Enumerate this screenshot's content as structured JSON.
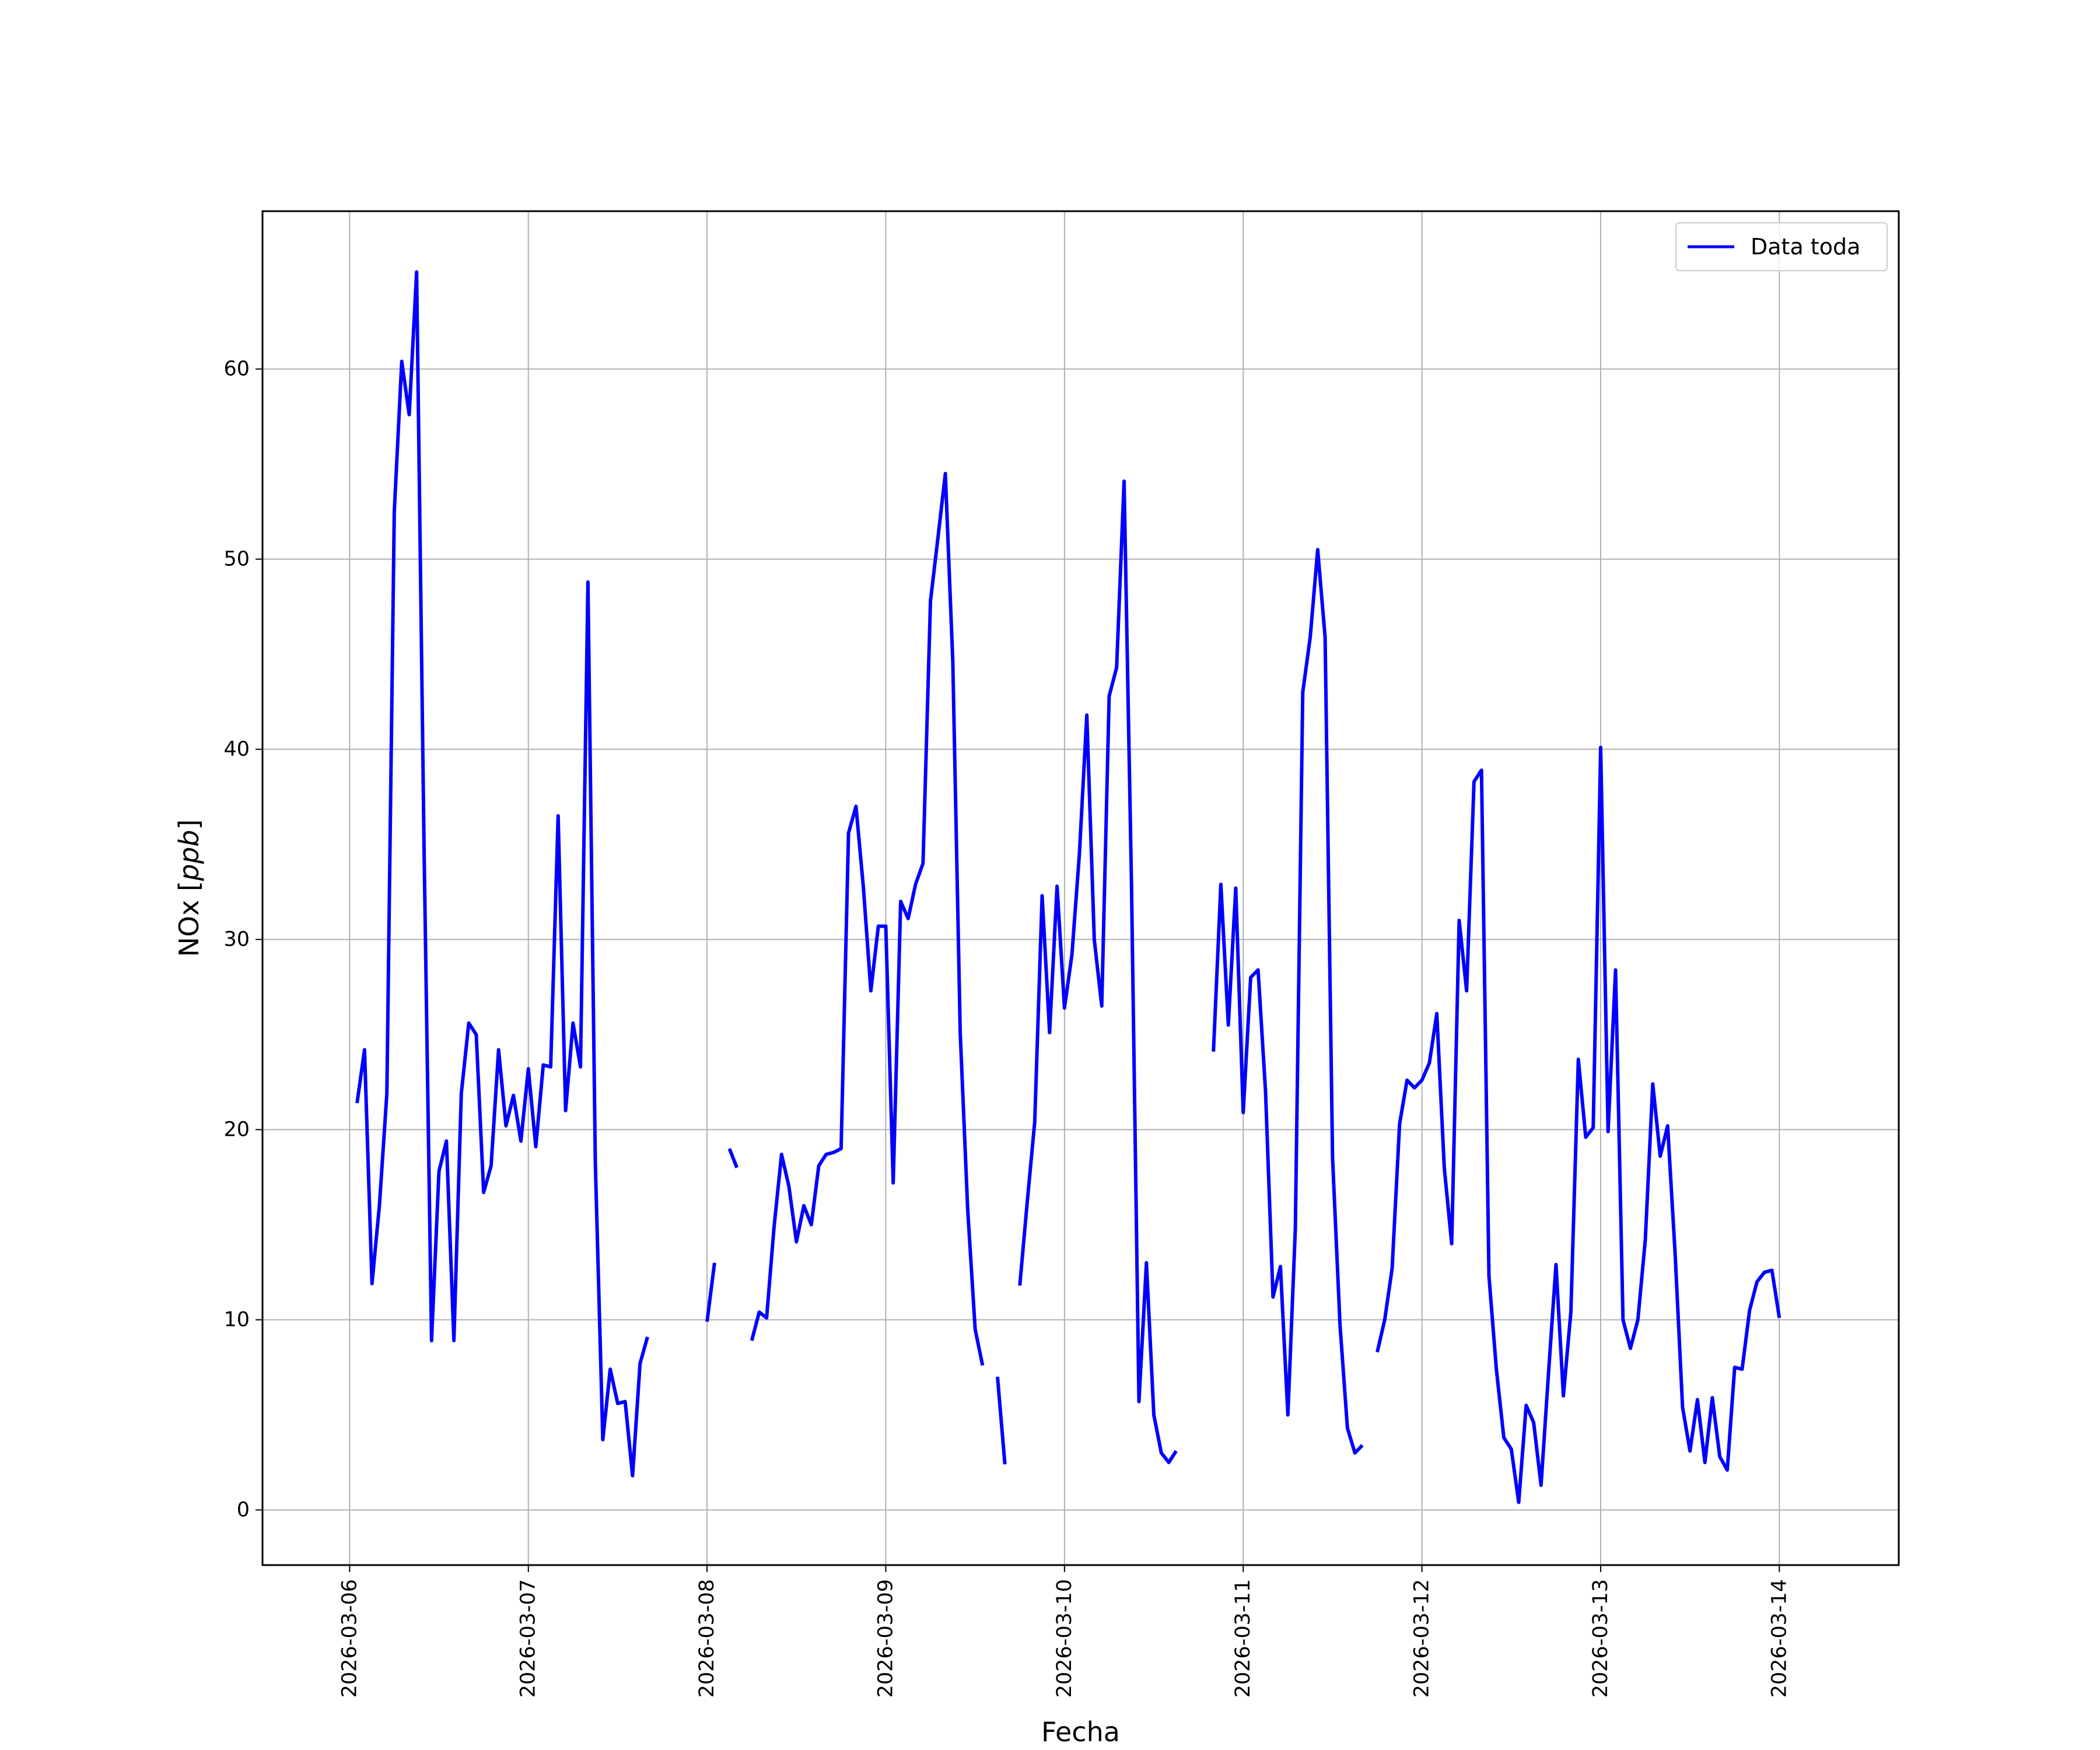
{
  "chart_data": {
    "type": "line",
    "title": "",
    "xlabel": "Fecha",
    "ylabel_prefix": "NOx [",
    "ylabel_unit": "ppb",
    "ylabel_suffix": "]",
    "x_is_date": true,
    "x_ticks": [
      "2026-03-06",
      "2026-03-07",
      "2026-03-08",
      "2026-03-09",
      "2026-03-10",
      "2026-03-11",
      "2026-03-12",
      "2026-03-13",
      "2026-03-14"
    ],
    "y_ticks": [
      0,
      10,
      20,
      30,
      40,
      50,
      60
    ],
    "xlim": [
      "2026-03-05 12:18",
      "2026-03-14 16:02"
    ],
    "ylim": [
      -2.9,
      68.3
    ],
    "grid": true,
    "legend_location": "upper right",
    "colors": {
      "line": "#0000ff",
      "grid": "#b0b0b0",
      "axes": "#000000"
    },
    "series": [
      {
        "name": "Data toda",
        "segments": [
          [
            [
              "2026-03-06 01:00",
              21.4
            ],
            [
              "2026-03-06 02:00",
              24.2
            ],
            [
              "2026-03-06 03:00",
              11.9
            ],
            [
              "2026-03-06 04:00",
              16.0
            ],
            [
              "2026-03-06 05:00",
              21.9
            ],
            [
              "2026-03-06 06:00",
              52.5
            ],
            [
              "2026-03-06 07:00",
              60.4
            ],
            [
              "2026-03-06 08:00",
              57.6
            ],
            [
              "2026-03-06 09:00",
              65.1
            ],
            [
              "2026-03-06 10:00",
              34.7
            ],
            [
              "2026-03-06 11:00",
              8.9
            ],
            [
              "2026-03-06 12:00",
              17.8
            ],
            [
              "2026-03-06 13:00",
              19.4
            ],
            [
              "2026-03-06 14:00",
              8.9
            ],
            [
              "2026-03-06 15:00",
              21.9
            ],
            [
              "2026-03-06 16:00",
              25.6
            ],
            [
              "2026-03-06 17:00",
              25.0
            ],
            [
              "2026-03-06 18:00",
              16.7
            ],
            [
              "2026-03-06 19:00",
              18.1
            ],
            [
              "2026-03-06 20:00",
              24.2
            ],
            [
              "2026-03-06 21:00",
              20.2
            ],
            [
              "2026-03-06 22:00",
              21.8
            ],
            [
              "2026-03-06 23:00",
              19.4
            ],
            [
              "2026-03-07 00:00",
              23.2
            ],
            [
              "2026-03-07 01:00",
              19.1
            ],
            [
              "2026-03-07 02:00",
              23.4
            ],
            [
              "2026-03-07 03:00",
              23.3
            ],
            [
              "2026-03-07 04:00",
              36.5
            ],
            [
              "2026-03-07 05:00",
              21.0
            ],
            [
              "2026-03-07 06:00",
              25.6
            ],
            [
              "2026-03-07 07:00",
              23.3
            ],
            [
              "2026-03-07 08:00",
              48.8
            ],
            [
              "2026-03-07 09:00",
              18.2
            ],
            [
              "2026-03-07 10:00",
              3.7
            ],
            [
              "2026-03-07 11:00",
              7.4
            ],
            [
              "2026-03-07 12:00",
              5.6
            ],
            [
              "2026-03-07 13:00",
              5.7
            ],
            [
              "2026-03-07 14:00",
              1.8
            ],
            [
              "2026-03-07 15:00",
              7.7
            ],
            [
              "2026-03-07 16:00",
              9.1
            ]
          ],
          [
            [
              "2026-03-08 00:00",
              9.9
            ],
            [
              "2026-03-08 01:00",
              13.0
            ]
          ],
          [
            [
              "2026-03-08 03:00",
              19.0
            ],
            [
              "2026-03-08 04:00",
              18.0
            ]
          ],
          [
            [
              "2026-03-08 06:00",
              8.9
            ],
            [
              "2026-03-08 07:00",
              10.4
            ],
            [
              "2026-03-08 08:00",
              10.1
            ],
            [
              "2026-03-08 09:00",
              14.9
            ],
            [
              "2026-03-08 10:00",
              18.7
            ],
            [
              "2026-03-08 11:00",
              17.0
            ],
            [
              "2026-03-08 12:00",
              14.1
            ],
            [
              "2026-03-08 13:00",
              16.0
            ],
            [
              "2026-03-08 14:00",
              15.0
            ],
            [
              "2026-03-08 15:00",
              18.1
            ],
            [
              "2026-03-08 16:00",
              18.7
            ],
            [
              "2026-03-08 17:00",
              18.8
            ],
            [
              "2026-03-08 18:00",
              19.0
            ],
            [
              "2026-03-08 19:00",
              35.6
            ],
            [
              "2026-03-08 20:00",
              37.0
            ],
            [
              "2026-03-08 21:00",
              32.7
            ],
            [
              "2026-03-08 22:00",
              27.3
            ],
            [
              "2026-03-08 23:00",
              30.7
            ],
            [
              "2026-03-09 00:00",
              30.7
            ],
            [
              "2026-03-09 01:00",
              17.2
            ],
            [
              "2026-03-09 02:00",
              32.0
            ],
            [
              "2026-03-09 03:00",
              31.1
            ],
            [
              "2026-03-09 04:00",
              32.9
            ],
            [
              "2026-03-09 05:00",
              34.0
            ],
            [
              "2026-03-09 06:00",
              47.8
            ],
            [
              "2026-03-09 07:00",
              51.1
            ],
            [
              "2026-03-09 08:00",
              54.5
            ],
            [
              "2026-03-09 09:00",
              44.6
            ],
            [
              "2026-03-09 10:00",
              25.1
            ],
            [
              "2026-03-09 11:00",
              15.8
            ],
            [
              "2026-03-09 12:00",
              9.5
            ],
            [
              "2026-03-09 13:00",
              7.6
            ]
          ],
          [
            [
              "2026-03-09 15:00",
              7.0
            ],
            [
              "2026-03-09 16:00",
              2.4
            ]
          ],
          [
            [
              "2026-03-09 18:00",
              11.8
            ],
            [
              "2026-03-09 19:00",
              16.2
            ],
            [
              "2026-03-09 20:00",
              20.4
            ],
            [
              "2026-03-09 21:00",
              32.3
            ],
            [
              "2026-03-09 22:00",
              25.1
            ],
            [
              "2026-03-09 23:00",
              32.8
            ],
            [
              "2026-03-10 00:00",
              26.4
            ],
            [
              "2026-03-10 01:00",
              29.2
            ],
            [
              "2026-03-10 02:00",
              34.5
            ],
            [
              "2026-03-10 03:00",
              41.8
            ],
            [
              "2026-03-10 04:00",
              30.0
            ],
            [
              "2026-03-10 05:00",
              26.5
            ],
            [
              "2026-03-10 06:00",
              42.8
            ],
            [
              "2026-03-10 07:00",
              44.3
            ],
            [
              "2026-03-10 08:00",
              54.1
            ],
            [
              "2026-03-10 09:00",
              32.9
            ],
            [
              "2026-03-10 10:00",
              5.7
            ],
            [
              "2026-03-10 11:00",
              13.0
            ],
            [
              "2026-03-10 12:00",
              5.0
            ],
            [
              "2026-03-10 13:00",
              3.0
            ],
            [
              "2026-03-10 14:00",
              2.5
            ],
            [
              "2026-03-10 15:00",
              3.1
            ]
          ],
          [
            [
              "2026-03-10 20:00",
              24.1
            ],
            [
              "2026-03-10 21:00",
              32.9
            ],
            [
              "2026-03-10 22:00",
              25.5
            ],
            [
              "2026-03-10 23:00",
              32.7
            ],
            [
              "2026-03-11 00:00",
              20.9
            ],
            [
              "2026-03-11 01:00",
              28.0
            ],
            [
              "2026-03-11 02:00",
              28.4
            ],
            [
              "2026-03-11 03:00",
              22.0
            ],
            [
              "2026-03-11 04:00",
              11.2
            ],
            [
              "2026-03-11 05:00",
              12.8
            ],
            [
              "2026-03-11 06:00",
              5.0
            ],
            [
              "2026-03-11 07:00",
              14.8
            ],
            [
              "2026-03-11 08:00",
              43.0
            ],
            [
              "2026-03-11 09:00",
              45.9
            ],
            [
              "2026-03-11 10:00",
              50.5
            ],
            [
              "2026-03-11 11:00",
              45.9
            ],
            [
              "2026-03-11 12:00",
              18.5
            ],
            [
              "2026-03-11 13:00",
              9.7
            ],
            [
              "2026-03-11 14:00",
              4.3
            ],
            [
              "2026-03-11 15:00",
              3.0
            ],
            [
              "2026-03-11 16:00",
              3.4
            ]
          ],
          [
            [
              "2026-03-11 18:00",
              8.3
            ],
            [
              "2026-03-11 19:00",
              10.0
            ],
            [
              "2026-03-11 20:00",
              12.7
            ],
            [
              "2026-03-11 21:00",
              20.3
            ],
            [
              "2026-03-11 22:00",
              22.6
            ],
            [
              "2026-03-11 23:00",
              22.2
            ],
            [
              "2026-03-12 00:00",
              22.6
            ],
            [
              "2026-03-12 01:00",
              23.5
            ],
            [
              "2026-03-12 02:00",
              26.1
            ],
            [
              "2026-03-12 03:00",
              18.0
            ],
            [
              "2026-03-12 04:00",
              14.0
            ],
            [
              "2026-03-12 05:00",
              31.0
            ],
            [
              "2026-03-12 06:00",
              27.3
            ],
            [
              "2026-03-12 07:00",
              38.3
            ],
            [
              "2026-03-12 08:00",
              38.9
            ],
            [
              "2026-03-12 09:00",
              12.3
            ],
            [
              "2026-03-12 10:00",
              7.4
            ],
            [
              "2026-03-12 11:00",
              3.8
            ],
            [
              "2026-03-12 12:00",
              3.2
            ],
            [
              "2026-03-12 13:00",
              0.4
            ],
            [
              "2026-03-12 14:00",
              5.5
            ],
            [
              "2026-03-12 15:00",
              4.6
            ],
            [
              "2026-03-12 16:00",
              1.3
            ],
            [
              "2026-03-12 17:00",
              7.2
            ],
            [
              "2026-03-12 18:00",
              12.9
            ],
            [
              "2026-03-12 19:00",
              6.0
            ],
            [
              "2026-03-12 20:00",
              10.4
            ],
            [
              "2026-03-12 21:00",
              23.7
            ],
            [
              "2026-03-12 22:00",
              19.6
            ],
            [
              "2026-03-12 23:00",
              20.1
            ],
            [
              "2026-03-13 00:00",
              40.1
            ],
            [
              "2026-03-13 01:00",
              19.9
            ],
            [
              "2026-03-13 02:00",
              28.4
            ],
            [
              "2026-03-13 03:00",
              10.0
            ],
            [
              "2026-03-13 04:00",
              8.5
            ],
            [
              "2026-03-13 05:00",
              10.0
            ],
            [
              "2026-03-13 06:00",
              14.2
            ],
            [
              "2026-03-13 07:00",
              22.4
            ],
            [
              "2026-03-13 08:00",
              18.6
            ],
            [
              "2026-03-13 09:00",
              20.2
            ],
            [
              "2026-03-13 10:00",
              13.5
            ],
            [
              "2026-03-13 11:00",
              5.4
            ],
            [
              "2026-03-13 12:00",
              3.1
            ],
            [
              "2026-03-13 13:00",
              5.8
            ],
            [
              "2026-03-13 14:00",
              2.5
            ],
            [
              "2026-03-13 15:00",
              5.9
            ],
            [
              "2026-03-13 16:00",
              2.8
            ],
            [
              "2026-03-13 17:00",
              2.1
            ],
            [
              "2026-03-13 18:00",
              7.5
            ],
            [
              "2026-03-13 19:00",
              7.4
            ],
            [
              "2026-03-13 20:00",
              10.5
            ],
            [
              "2026-03-13 21:00",
              12.0
            ],
            [
              "2026-03-13 22:00",
              12.5
            ],
            [
              "2026-03-13 23:00",
              12.6
            ],
            [
              "2026-03-14 00:00",
              10.1
            ]
          ]
        ]
      }
    ]
  }
}
